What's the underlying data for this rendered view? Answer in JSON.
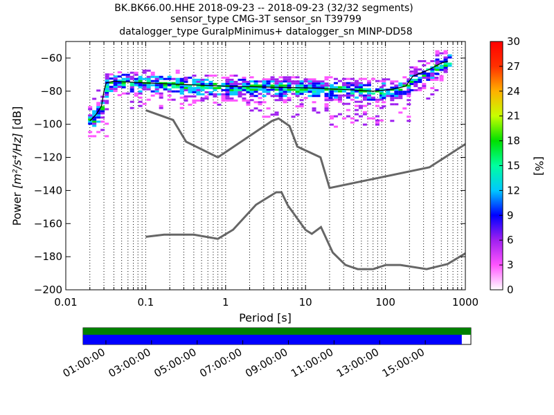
{
  "chart_data": [
    {
      "type": "heatmap",
      "title_lines": [
        "BK.BK66.00.HHE   2018-09-23 -- 2018-09-23  (32/32 segments)",
        "sensor_type CMG-3T sensor_sn T39799",
        "datalogger_type GuralpMinimus+ datalogger_sn MINP-DD58"
      ],
      "xlabel": "Period [s]",
      "ylabel_prefix": "Power ",
      "ylabel_math": "[m²/s⁴/Hz]",
      "ylabel_suffix": " [dB]",
      "x_scale": "log",
      "xlim": [
        0.01,
        1000
      ],
      "ylim": [
        -200,
        -50
      ],
      "x_ticks": [
        {
          "value": 0.01,
          "label": "0.01"
        },
        {
          "value": 0.1,
          "label": "0.1"
        },
        {
          "value": 1,
          "label": "1"
        },
        {
          "value": 10,
          "label": "10"
        },
        {
          "value": 100,
          "label": "100"
        },
        {
          "value": 1000,
          "label": "1000"
        }
      ],
      "y_ticks": [
        {
          "value": -60,
          "label": "−60"
        },
        {
          "value": -80,
          "label": "−80"
        },
        {
          "value": -100,
          "label": "−100"
        },
        {
          "value": -120,
          "label": "−120"
        },
        {
          "value": -140,
          "label": "−140"
        },
        {
          "value": -160,
          "label": "−160"
        },
        {
          "value": -180,
          "label": "−180"
        },
        {
          "value": -200,
          "label": "−200"
        }
      ],
      "grid": "dotted-vertical",
      "colorbar": {
        "label": "[%]",
        "min": 0,
        "max": 30,
        "ticks": [
          {
            "value": 0,
            "label": "0"
          },
          {
            "value": 3,
            "label": "3"
          },
          {
            "value": 6,
            "label": "6"
          },
          {
            "value": 9,
            "label": "9"
          },
          {
            "value": 12,
            "label": "12"
          },
          {
            "value": 15,
            "label": "15"
          },
          {
            "value": 18,
            "label": "18"
          },
          {
            "value": 21,
            "label": "21"
          },
          {
            "value": 24,
            "label": "24"
          },
          {
            "value": 27,
            "label": "27"
          },
          {
            "value": 30,
            "label": "30"
          }
        ],
        "colors": [
          "#ffffff",
          "#ff55ff",
          "#a020f0",
          "#0000ff",
          "#00c8ff",
          "#00ff9f",
          "#00e000",
          "#c8ff00",
          "#ffb000",
          "#ff3000",
          "#ff0000"
        ]
      },
      "noise_models": {
        "color": "#666666",
        "high": [
          [
            0.1,
            -91.5
          ],
          [
            0.22,
            -97.4
          ],
          [
            0.32,
            -110.5
          ],
          [
            0.8,
            -120
          ],
          [
            3.8,
            -98
          ],
          [
            4.6,
            -96.5
          ],
          [
            6.3,
            -101
          ],
          [
            7.9,
            -113.5
          ],
          [
            15.4,
            -120
          ],
          [
            20,
            -138.5
          ],
          [
            354.8,
            -126
          ],
          [
            1000,
            -112
          ]
        ],
        "low": [
          [
            0.1,
            -168
          ],
          [
            0.17,
            -166.7
          ],
          [
            0.4,
            -166.7
          ],
          [
            0.8,
            -169.2
          ],
          [
            1.24,
            -163.7
          ],
          [
            2.4,
            -148.6
          ],
          [
            4.3,
            -141.1
          ],
          [
            5,
            -141.1
          ],
          [
            6,
            -149
          ],
          [
            10,
            -163.8
          ],
          [
            12,
            -166.2
          ],
          [
            15.6,
            -162.1
          ],
          [
            21.9,
            -177.5
          ],
          [
            31.6,
            -185
          ],
          [
            45,
            -187.5
          ],
          [
            70,
            -187.5
          ],
          [
            101,
            -185
          ],
          [
            154,
            -185
          ],
          [
            328,
            -187.5
          ],
          [
            600,
            -184.4
          ],
          [
            1000,
            -178
          ]
        ]
      },
      "psd_mean": [
        [
          0.02,
          -98
        ],
        [
          0.024,
          -94
        ],
        [
          0.028,
          -89
        ],
        [
          0.03,
          -80
        ],
        [
          0.032,
          -75
        ],
        [
          0.04,
          -74
        ],
        [
          0.06,
          -74.5
        ],
        [
          0.1,
          -75
        ],
        [
          0.3,
          -76
        ],
        [
          1,
          -77
        ],
        [
          3,
          -77.5
        ],
        [
          10,
          -78
        ],
        [
          30,
          -79
        ],
        [
          70,
          -80
        ],
        [
          120,
          -79
        ],
        [
          180,
          -77
        ],
        [
          220,
          -71
        ],
        [
          350,
          -67
        ],
        [
          500,
          -63
        ],
        [
          600,
          -62
        ]
      ],
      "psd_bands": [
        {
          "x0": 0.019,
          "x1": 0.031,
          "y0": -107,
          "y1": -79
        },
        {
          "x0": 0.031,
          "x1": 0.05,
          "y0": -82,
          "y1": -68
        },
        {
          "x0": 0.05,
          "x1": 0.3,
          "y0": -90,
          "y1": -67
        },
        {
          "x0": 0.3,
          "x1": 2,
          "y0": -88,
          "y1": -70
        },
        {
          "x0": 2,
          "x1": 20,
          "y0": -96,
          "y1": -71
        },
        {
          "x0": 20,
          "x1": 90,
          "y0": -102,
          "y1": -72
        },
        {
          "x0": 90,
          "x1": 200,
          "y0": -98,
          "y1": -71
        },
        {
          "x0": 200,
          "x1": 420,
          "y0": -84,
          "y1": -60
        },
        {
          "x0": 420,
          "x1": 650,
          "y0": -74,
          "y1": -54
        }
      ]
    },
    {
      "type": "timeline",
      "tick_labels": [
        "01:00:00",
        "03:00:00",
        "05:00:00",
        "07:00:00",
        "09:00:00",
        "11:00:00",
        "13:00:00",
        "15:00:00"
      ],
      "tick_positions_hours": [
        1,
        3,
        5,
        7,
        9,
        11,
        13,
        15
      ],
      "range_hours": [
        0,
        17
      ],
      "coverage_hours": [
        [
          0,
          16.6
        ]
      ],
      "top_bar_color": "#008000",
      "bottom_bar_color": "#0000ff"
    }
  ]
}
